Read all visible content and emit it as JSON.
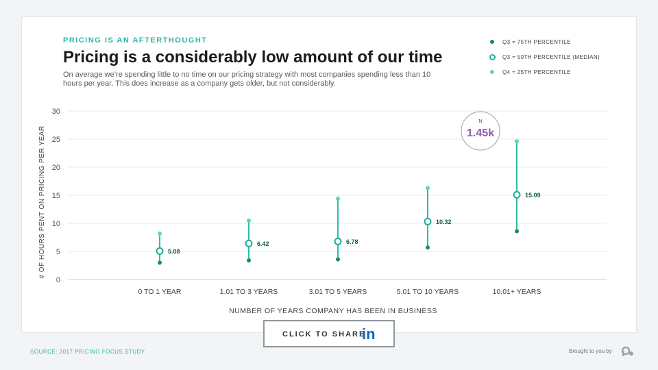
{
  "header": {
    "eyebrow": "PRICING IS AN AFTERTHOUGHT",
    "title": "Pricing is a considerably low amount of our time",
    "subtitle": "On average we’re spending little to no time on our pricing strategy with most companies spending less than 10 hours per year. This does increase as a company gets older, but not considerably."
  },
  "legend": {
    "q3_75": "Q3 = 75TH PERCENTILE",
    "q3_50": "Q3 = 50TH PERCENTILE (MEDIAN)",
    "q4_25": "Q4 = 25TH PERCENTILE"
  },
  "colors": {
    "dark": "#1a8a72",
    "mid": "#17b09a",
    "light": "#5fd6bd",
    "line": "#2bbfa5",
    "label": "#0f5c4d",
    "n_circle_text": "#8e5aa8"
  },
  "n_badge": {
    "label": "N",
    "value": "1.45k"
  },
  "share": {
    "label": "CLICK TO SHARE",
    "icon": "linkedin-icon",
    "icon_text": "in"
  },
  "footer": {
    "source": "SOURCE: 2017 PRICING FOCUS STUDY",
    "brought": "Brought to you by"
  },
  "chart_data": {
    "type": "range",
    "title": "Pricing is a considerably low amount of our time",
    "xlabel": "NUMBER OF YEARS COMPANY HAS BEEN IN BUSINESS",
    "ylabel": "# OF HOURS PENT ON PRICING PER YEAR",
    "ylim": [
      0,
      30
    ],
    "yticks": [
      0,
      5,
      10,
      15,
      20,
      25,
      30
    ],
    "grid": true,
    "categories": [
      "0 TO 1 YEAR",
      "1.01 TO 3 YEARS",
      "3.01 TO 5 YEARS",
      "5.01 TO 10 YEARS",
      "10.01+ YEARS"
    ],
    "series": [
      {
        "name": "Q3 = 75TH PERCENTILE",
        "values": [
          3.0,
          3.4,
          3.6,
          5.7,
          8.6
        ]
      },
      {
        "name": "Q3 = 50TH PERCENTILE (MEDIAN)",
        "values": [
          5.08,
          6.42,
          6.78,
          10.32,
          15.09
        ]
      },
      {
        "name": "Q4 = 25TH PERCENTILE",
        "values": [
          8.2,
          10.5,
          14.4,
          16.3,
          24.6
        ]
      }
    ],
    "median_labels": [
      "5.08",
      "6.42",
      "6.78",
      "10.32",
      "15.09"
    ]
  }
}
